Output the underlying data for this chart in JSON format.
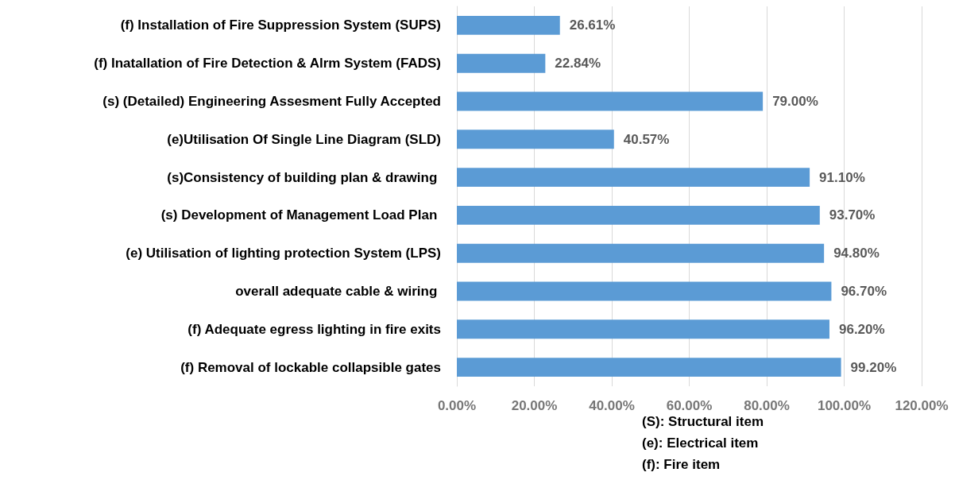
{
  "chart_data": {
    "type": "bar",
    "orientation": "horizontal",
    "categories": [
      "(f) Installation of Fire Suppression System (SUPS)",
      "(f) Inatallation of Fire Detection & Alrm System (FADS)",
      "(s) (Detailed) Engineering Assesment Fully Accepted",
      "(e)Utilisation Of Single Line Diagram (SLD)",
      "(s)Consistency of building plan & drawing ",
      "(s) Development of Management Load Plan ",
      "(e) Utilisation of lighting protection System (LPS)",
      "overall adequate cable & wiring ",
      "(f) Adequate egress lighting in fire exits",
      "(f) Removal of lockable collapsible gates"
    ],
    "values": [
      26.61,
      22.84,
      79.0,
      40.57,
      91.1,
      93.7,
      94.8,
      96.7,
      96.2,
      99.2
    ],
    "value_labels": [
      "26.61%",
      "22.84%",
      "79.00%",
      "40.57%",
      "91.10%",
      "93.70%",
      "94.80%",
      "96.70%",
      "96.20%",
      "99.20%"
    ],
    "color": "#5b9bd5",
    "xlim": [
      0,
      120
    ],
    "xticks": [
      {
        "value": 0,
        "label": "0.00%"
      },
      {
        "value": 20,
        "label": "20.00%"
      },
      {
        "value": 40,
        "label": "40.00%"
      },
      {
        "value": 60,
        "label": "60.00%"
      },
      {
        "value": 80,
        "label": "80.00%"
      },
      {
        "value": 100,
        "label": "100.00%"
      },
      {
        "value": 120,
        "label": "120.00%"
      }
    ],
    "grid": "x",
    "annotations": [
      "(S): Structural item",
      "(e): Electrical item",
      "(f): Fire item"
    ]
  }
}
